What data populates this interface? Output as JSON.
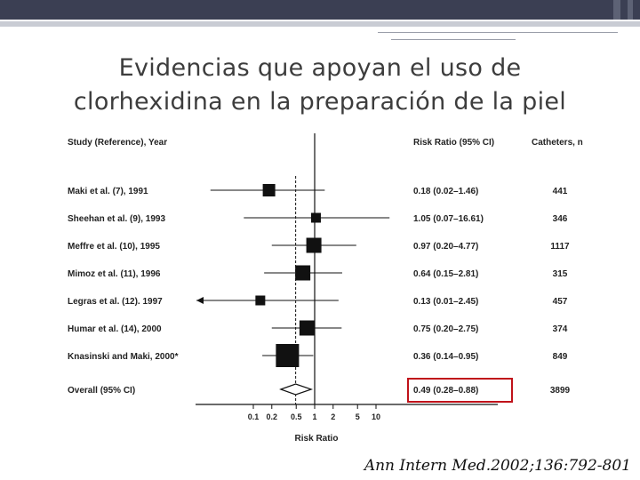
{
  "title": {
    "line1": "Evidencias que apoyan el uso de",
    "line2": "clorhexidina en la preparación de la piel"
  },
  "citation": "Ann Intern Med.2002;136:792-801",
  "chart_data": {
    "type": "forest",
    "column_headers": {
      "study": "Study (Reference), Year",
      "rr": "Risk Ratio (95% CI)",
      "catheters": "Catheters, n"
    },
    "studies": [
      {
        "label": "Maki et al. (7), 1991",
        "rr": 0.18,
        "lo": 0.02,
        "hi": 1.46,
        "rr_text": "0.18 (0.02–1.46)",
        "n": "441",
        "weight": 2
      },
      {
        "label": "Sheehan et al. (9), 1993",
        "rr": 1.05,
        "lo": 0.07,
        "hi": 16.61,
        "rr_text": "1.05 (0.07–16.61)",
        "n": "346",
        "weight": 1
      },
      {
        "label": "Meffre et al. (10), 1995",
        "rr": 0.97,
        "lo": 0.2,
        "hi": 4.77,
        "rr_text": "0.97 (0.20–4.77)",
        "n": "1117",
        "weight": 3
      },
      {
        "label": "Mimoz et al. (11), 1996",
        "rr": 0.64,
        "lo": 0.15,
        "hi": 2.81,
        "rr_text": "0.64 (0.15–2.81)",
        "n": "315",
        "weight": 3
      },
      {
        "label": "Legras et al. (12). 1997",
        "rr": 0.13,
        "lo": 0.01,
        "hi": 2.45,
        "rr_text": "0.13 (0.01–2.45)",
        "n": "457",
        "weight": 1
      },
      {
        "label": "Humar et al. (14), 2000",
        "rr": 0.75,
        "lo": 0.2,
        "hi": 2.75,
        "rr_text": "0.75 (0.20–2.75)",
        "n": "374",
        "weight": 3
      },
      {
        "label": "Knasinski and Maki, 2000*",
        "rr": 0.36,
        "lo": 0.14,
        "hi": 0.95,
        "rr_text": "0.36 (0.14–0.95)",
        "n": "849",
        "weight": 6
      }
    ],
    "overall": {
      "label": "Overall (95% CI)",
      "rr": 0.49,
      "lo": 0.28,
      "hi": 0.88,
      "rr_text": "0.49 (0.28–0.88)",
      "n": "3899"
    },
    "x_ticks": [
      0.1,
      0.2,
      0.5,
      1,
      2,
      5,
      10
    ],
    "x_tick_labels": [
      "0.1",
      "0.2",
      "0.5",
      "1",
      "2",
      "5",
      "10"
    ],
    "xlabel": "Risk Ratio",
    "x_scale": "log",
    "xlim": [
      0.08,
      13
    ],
    "reference_line": 1,
    "highlight_color": "#c0121a"
  }
}
